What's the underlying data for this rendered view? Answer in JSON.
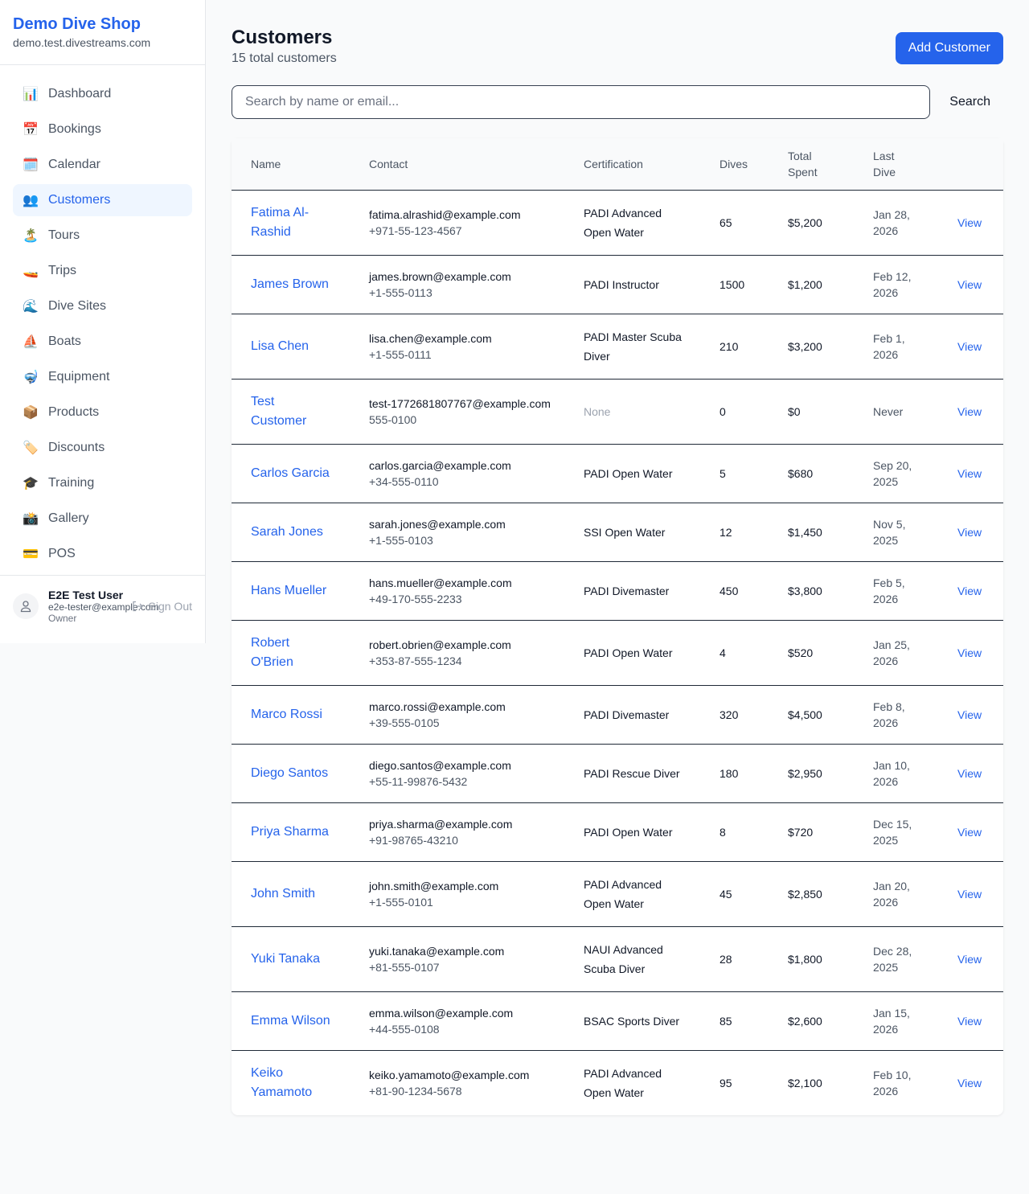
{
  "sidebar": {
    "brand": "Demo Dive Shop",
    "domain": "demo.test.divestreams.com",
    "items": [
      {
        "label": "Dashboard",
        "icon": "📊"
      },
      {
        "label": "Bookings",
        "icon": "📅"
      },
      {
        "label": "Calendar",
        "icon": "🗓️"
      },
      {
        "label": "Customers",
        "icon": "👥",
        "active": true
      },
      {
        "label": "Tours",
        "icon": "🏝️"
      },
      {
        "label": "Trips",
        "icon": "🚤"
      },
      {
        "label": "Dive Sites",
        "icon": "🌊"
      },
      {
        "label": "Boats",
        "icon": "⛵"
      },
      {
        "label": "Equipment",
        "icon": "🤿"
      },
      {
        "label": "Products",
        "icon": "📦"
      },
      {
        "label": "Discounts",
        "icon": "🏷️"
      },
      {
        "label": "Training",
        "icon": "🎓"
      },
      {
        "label": "Gallery",
        "icon": "📸"
      },
      {
        "label": "POS",
        "icon": "💳"
      }
    ],
    "user": {
      "name": "E2E Test User",
      "email": "e2e-tester@example.com",
      "role": "Owner",
      "sign_out": "Sign Out"
    }
  },
  "header": {
    "title": "Customers",
    "subtitle": "15 total customers",
    "add_button": "Add Customer"
  },
  "search": {
    "placeholder": "Search by name or email...",
    "button": "Search"
  },
  "table": {
    "columns": [
      "Name",
      "Contact",
      "Certification",
      "Dives",
      "Total Spent",
      "Last Dive",
      ""
    ],
    "view_label": "View",
    "rows": [
      {
        "name": "Fatima Al-Rashid",
        "email": "fatima.alrashid@example.com",
        "phone": "+971-55-123-4567",
        "cert": "PADI Advanced Open Water",
        "dives": "65",
        "spent": "$5,200",
        "last": "Jan 28, 2026"
      },
      {
        "name": "James Brown",
        "email": "james.brown@example.com",
        "phone": "+1-555-0113",
        "cert": "PADI Instructor",
        "dives": "1500",
        "spent": "$1,200",
        "last": "Feb 12, 2026"
      },
      {
        "name": "Lisa Chen",
        "email": "lisa.chen@example.com",
        "phone": "+1-555-0111",
        "cert": "PADI Master Scuba Diver",
        "dives": "210",
        "spent": "$3,200",
        "last": "Feb 1, 2026"
      },
      {
        "name": "Test Customer",
        "email": "test-1772681807767@example.com",
        "phone": "555-0100",
        "cert": "None",
        "dives": "0",
        "spent": "$0",
        "last": "Never"
      },
      {
        "name": "Carlos Garcia",
        "email": "carlos.garcia@example.com",
        "phone": "+34-555-0110",
        "cert": "PADI Open Water",
        "dives": "5",
        "spent": "$680",
        "last": "Sep 20, 2025"
      },
      {
        "name": "Sarah Jones",
        "email": "sarah.jones@example.com",
        "phone": "+1-555-0103",
        "cert": "SSI Open Water",
        "dives": "12",
        "spent": "$1,450",
        "last": "Nov 5, 2025"
      },
      {
        "name": "Hans Mueller",
        "email": "hans.mueller@example.com",
        "phone": "+49-170-555-2233",
        "cert": "PADI Divemaster",
        "dives": "450",
        "spent": "$3,800",
        "last": "Feb 5, 2026"
      },
      {
        "name": "Robert O'Brien",
        "email": "robert.obrien@example.com",
        "phone": "+353-87-555-1234",
        "cert": "PADI Open Water",
        "dives": "4",
        "spent": "$520",
        "last": "Jan 25, 2026"
      },
      {
        "name": "Marco Rossi",
        "email": "marco.rossi@example.com",
        "phone": "+39-555-0105",
        "cert": "PADI Divemaster",
        "dives": "320",
        "spent": "$4,500",
        "last": "Feb 8, 2026"
      },
      {
        "name": "Diego Santos",
        "email": "diego.santos@example.com",
        "phone": "+55-11-99876-5432",
        "cert": "PADI Rescue Diver",
        "dives": "180",
        "spent": "$2,950",
        "last": "Jan 10, 2026"
      },
      {
        "name": "Priya Sharma",
        "email": "priya.sharma@example.com",
        "phone": "+91-98765-43210",
        "cert": "PADI Open Water",
        "dives": "8",
        "spent": "$720",
        "last": "Dec 15, 2025"
      },
      {
        "name": "John Smith",
        "email": "john.smith@example.com",
        "phone": "+1-555-0101",
        "cert": "PADI Advanced Open Water",
        "dives": "45",
        "spent": "$2,850",
        "last": "Jan 20, 2026"
      },
      {
        "name": "Yuki Tanaka",
        "email": "yuki.tanaka@example.com",
        "phone": "+81-555-0107",
        "cert": "NAUI Advanced Scuba Diver",
        "dives": "28",
        "spent": "$1,800",
        "last": "Dec 28, 2025"
      },
      {
        "name": "Emma Wilson",
        "email": "emma.wilson@example.com",
        "phone": "+44-555-0108",
        "cert": "BSAC Sports Diver",
        "dives": "85",
        "spent": "$2,600",
        "last": "Jan 15, 2026"
      },
      {
        "name": "Keiko Yamamoto",
        "email": "keiko.yamamoto@example.com",
        "phone": "+81-90-1234-5678",
        "cert": "PADI Advanced Open Water",
        "dives": "95",
        "spent": "$2,100",
        "last": "Feb 10, 2026"
      }
    ]
  }
}
